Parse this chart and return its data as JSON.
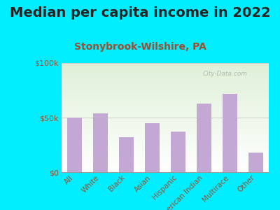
{
  "title": "Median per capita income in 2022",
  "subtitle": "Stonybrook-Wilshire, PA",
  "categories": [
    "All",
    "White",
    "Black",
    "Asian",
    "Hispanic",
    "American Indian",
    "Multirace",
    "Other"
  ],
  "values": [
    50000,
    54000,
    32000,
    45000,
    37000,
    63000,
    72000,
    18000
  ],
  "bar_color": "#c4a8d4",
  "background_outer": "#00eeff",
  "background_inner_top_left": "#dff0d8",
  "background_inner_bottom_right": "#ffffff",
  "title_color": "#222222",
  "subtitle_color": "#9b5030",
  "tick_label_color": "#9b5030",
  "ylim": [
    0,
    100000
  ],
  "yticks": [
    0,
    50000,
    100000
  ],
  "ytick_labels": [
    "$0",
    "$50k",
    "$100k"
  ],
  "title_fontsize": 14,
  "subtitle_fontsize": 10,
  "watermark": "City-Data.com"
}
